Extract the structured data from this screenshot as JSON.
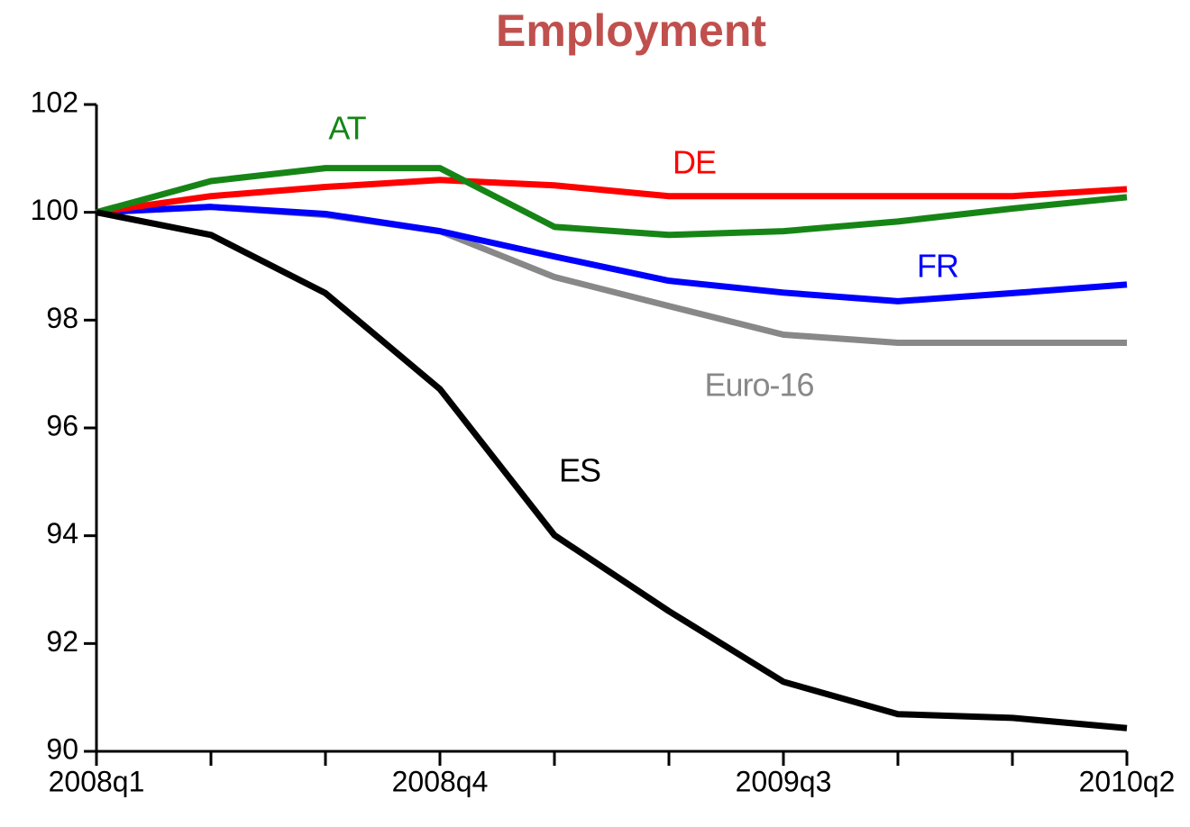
{
  "chart_data": {
    "type": "line",
    "title": "Employment",
    "categories": [
      "2008q1",
      null,
      null,
      "2008q4",
      null,
      null,
      "2009q3",
      null,
      null,
      "2010q2"
    ],
    "series": [
      {
        "name": "Euro-16",
        "color": "#888888",
        "values": [
          100,
          100.1,
          99.95,
          99.65,
          98.8,
          98.26,
          97.73,
          97.58,
          97.58,
          97.58
        ]
      },
      {
        "name": "FR",
        "color": "#0000ff",
        "values": [
          100,
          100.1,
          99.97,
          99.65,
          99.18,
          98.73,
          98.51,
          98.35,
          98.5,
          98.66
        ]
      },
      {
        "name": "DE",
        "color": "#ff0000",
        "values": [
          100,
          100.3,
          100.47,
          100.6,
          100.5,
          100.3,
          100.3,
          100.3,
          100.3,
          100.43
        ]
      },
      {
        "name": "AT",
        "color": "#168516",
        "values": [
          100,
          100.58,
          100.82,
          100.82,
          99.73,
          99.58,
          99.65,
          99.83,
          100.07,
          100.28
        ]
      },
      {
        "name": "ES",
        "color": "#000000",
        "values": [
          100,
          99.58,
          98.5,
          96.72,
          94.01,
          92.6,
          91.29,
          90.69,
          90.62,
          90.43
        ]
      }
    ],
    "ylim": [
      90,
      102
    ],
    "yticks": [
      90,
      92,
      94,
      96,
      98,
      100,
      102
    ]
  }
}
